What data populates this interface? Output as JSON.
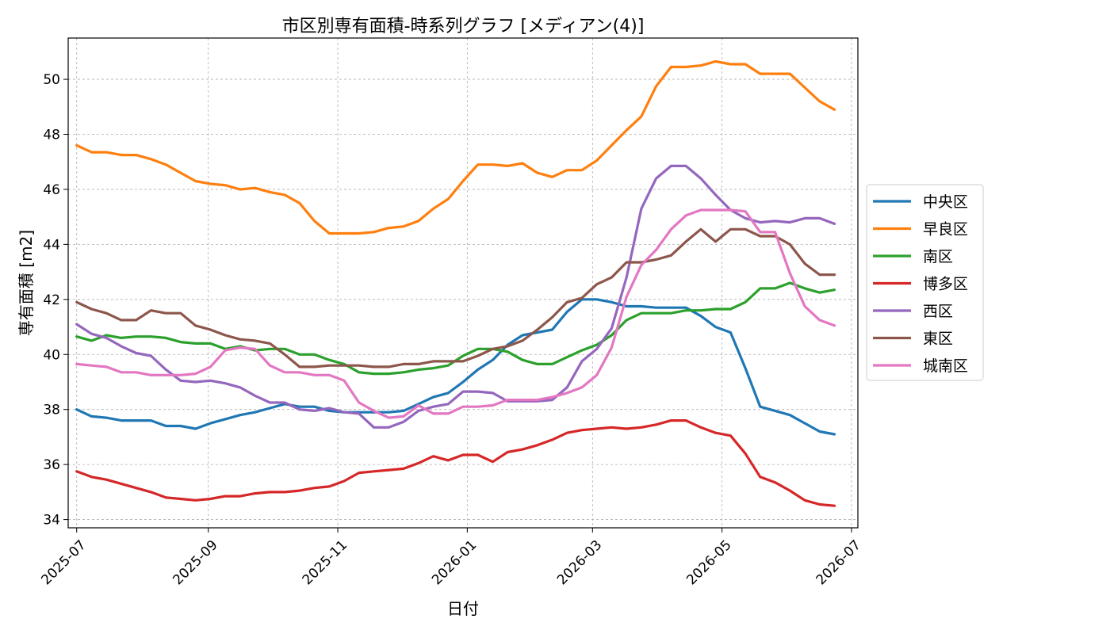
{
  "chart_data": {
    "type": "line",
    "title": "市区別専有面積-時系列グラフ [メディアン(4)]",
    "xlabel": "日付",
    "ylabel": "専有面積 [m2]",
    "xlim": [
      "2025-06-27",
      "2026-07-04"
    ],
    "ylim": [
      33.7,
      51.5
    ],
    "x_ticks": [
      "2025-07",
      "2025-09",
      "2025-11",
      "2026-01",
      "2026-03",
      "2026-05",
      "2026-07"
    ],
    "y_ticks": [
      "34",
      "36",
      "38",
      "40",
      "42",
      "44",
      "46",
      "48",
      "50"
    ],
    "grid": true,
    "legend_position": "outside-right",
    "x": [
      "2025-07-01",
      "2025-07-08",
      "2025-07-15",
      "2025-07-22",
      "2025-07-29",
      "2025-08-05",
      "2025-08-12",
      "2025-08-19",
      "2025-08-26",
      "2025-09-02",
      "2025-09-09",
      "2025-09-16",
      "2025-09-23",
      "2025-09-30",
      "2025-10-07",
      "2025-10-14",
      "2025-10-21",
      "2025-10-28",
      "2025-11-04",
      "2025-11-11",
      "2025-11-18",
      "2025-11-25",
      "2025-12-02",
      "2025-12-09",
      "2025-12-16",
      "2025-12-23",
      "2025-12-30",
      "2026-01-06",
      "2026-01-13",
      "2026-01-20",
      "2026-01-27",
      "2026-02-03",
      "2026-02-10",
      "2026-02-17",
      "2026-02-24",
      "2026-03-03",
      "2026-03-10",
      "2026-03-17",
      "2026-03-24",
      "2026-03-31",
      "2026-04-07",
      "2026-04-14",
      "2026-04-21",
      "2026-04-28",
      "2026-05-05",
      "2026-05-12",
      "2026-05-19",
      "2026-05-26",
      "2026-06-02",
      "2026-06-09",
      "2026-06-16",
      "2026-06-23"
    ],
    "series": [
      {
        "name": "中央区",
        "color": "#1f77b4",
        "values": [
          38.0,
          37.75,
          37.7,
          37.6,
          37.6,
          37.6,
          37.4,
          37.4,
          37.3,
          37.5,
          37.65,
          37.8,
          37.9,
          38.05,
          38.2,
          38.1,
          38.1,
          37.95,
          37.9,
          37.9,
          37.9,
          37.9,
          37.95,
          38.2,
          38.45,
          38.6,
          39.0,
          39.45,
          39.8,
          40.35,
          40.7,
          40.8,
          40.9,
          41.55,
          42.0,
          42.0,
          41.9,
          41.75,
          41.75,
          41.7,
          41.7,
          41.7,
          41.4,
          41.0,
          40.8,
          39.5,
          38.1,
          37.95,
          37.8,
          37.5,
          37.2,
          37.1
        ]
      },
      {
        "name": "早良区",
        "color": "#ff7f0e",
        "values": [
          47.6,
          47.35,
          47.35,
          47.25,
          47.25,
          47.1,
          46.9,
          46.6,
          46.3,
          46.2,
          46.15,
          46.0,
          46.05,
          45.9,
          45.8,
          45.5,
          44.85,
          44.4,
          44.4,
          44.4,
          44.45,
          44.6,
          44.65,
          44.85,
          45.3,
          45.65,
          46.3,
          46.9,
          46.9,
          46.85,
          46.95,
          46.6,
          46.45,
          46.7,
          46.7,
          47.05,
          47.6,
          48.15,
          48.65,
          49.75,
          50.45,
          50.45,
          50.5,
          50.65,
          50.55,
          50.55,
          50.2,
          50.2,
          50.2,
          49.7,
          49.2,
          48.9
        ]
      },
      {
        "name": "南区",
        "color": "#2ca02c",
        "values": [
          40.65,
          40.5,
          40.7,
          40.6,
          40.65,
          40.65,
          40.6,
          40.45,
          40.4,
          40.4,
          40.2,
          40.3,
          40.15,
          40.2,
          40.2,
          40.0,
          40.0,
          39.8,
          39.65,
          39.35,
          39.3,
          39.3,
          39.35,
          39.45,
          39.5,
          39.6,
          39.95,
          40.2,
          40.2,
          40.1,
          39.8,
          39.65,
          39.65,
          39.9,
          40.15,
          40.35,
          40.7,
          41.25,
          41.5,
          41.5,
          41.5,
          41.6,
          41.6,
          41.65,
          41.65,
          41.9,
          42.4,
          42.4,
          42.6,
          42.4,
          42.25,
          42.35
        ]
      },
      {
        "name": "博多区",
        "color": "#d62728",
        "values": [
          35.75,
          35.55,
          35.45,
          35.3,
          35.15,
          35.0,
          34.8,
          34.75,
          34.7,
          34.75,
          34.85,
          34.85,
          34.95,
          35.0,
          35.0,
          35.05,
          35.15,
          35.2,
          35.4,
          35.7,
          35.75,
          35.8,
          35.85,
          36.05,
          36.3,
          36.15,
          36.35,
          36.35,
          36.1,
          36.45,
          36.55,
          36.7,
          36.9,
          37.15,
          37.25,
          37.3,
          37.35,
          37.3,
          37.35,
          37.45,
          37.6,
          37.6,
          37.35,
          37.15,
          37.05,
          36.4,
          35.55,
          35.35,
          35.05,
          34.7,
          34.55,
          34.5
        ]
      },
      {
        "name": "西区",
        "color": "#9467bd",
        "values": [
          41.1,
          40.75,
          40.6,
          40.3,
          40.05,
          39.95,
          39.45,
          39.05,
          39.0,
          39.05,
          38.95,
          38.8,
          38.5,
          38.25,
          38.25,
          38.0,
          37.95,
          38.05,
          37.9,
          37.85,
          37.35,
          37.35,
          37.55,
          37.95,
          38.1,
          38.2,
          38.65,
          38.65,
          38.6,
          38.3,
          38.3,
          38.3,
          38.35,
          38.8,
          39.75,
          40.2,
          40.95,
          42.8,
          45.3,
          46.4,
          46.85,
          46.85,
          46.4,
          45.8,
          45.25,
          44.95,
          44.8,
          44.85,
          44.8,
          44.95,
          44.95,
          44.75
        ]
      },
      {
        "name": "東区",
        "color": "#8c564b",
        "values": [
          41.9,
          41.65,
          41.5,
          41.25,
          41.25,
          41.6,
          41.5,
          41.5,
          41.05,
          40.9,
          40.7,
          40.55,
          40.5,
          40.4,
          40.0,
          39.55,
          39.55,
          39.6,
          39.6,
          39.6,
          39.55,
          39.55,
          39.65,
          39.65,
          39.75,
          39.75,
          39.75,
          39.95,
          40.2,
          40.3,
          40.5,
          40.9,
          41.35,
          41.9,
          42.05,
          42.55,
          42.8,
          43.35,
          43.35,
          43.45,
          43.6,
          44.1,
          44.55,
          44.1,
          44.55,
          44.55,
          44.3,
          44.3,
          44.0,
          43.3,
          42.9,
          42.9
        ]
      },
      {
        "name": "城南区",
        "color": "#e377c2",
        "values": [
          39.65,
          39.6,
          39.55,
          39.35,
          39.35,
          39.25,
          39.25,
          39.25,
          39.3,
          39.55,
          40.15,
          40.25,
          40.2,
          39.6,
          39.35,
          39.35,
          39.25,
          39.25,
          39.05,
          38.25,
          37.95,
          37.7,
          37.75,
          38.15,
          37.85,
          37.85,
          38.1,
          38.1,
          38.15,
          38.35,
          38.35,
          38.35,
          38.45,
          38.6,
          38.8,
          39.25,
          40.25,
          42.1,
          43.25,
          43.8,
          44.55,
          45.05,
          45.25,
          45.25,
          45.25,
          45.2,
          44.45,
          44.45,
          42.95,
          41.75,
          41.25,
          41.05
        ]
      }
    ]
  }
}
